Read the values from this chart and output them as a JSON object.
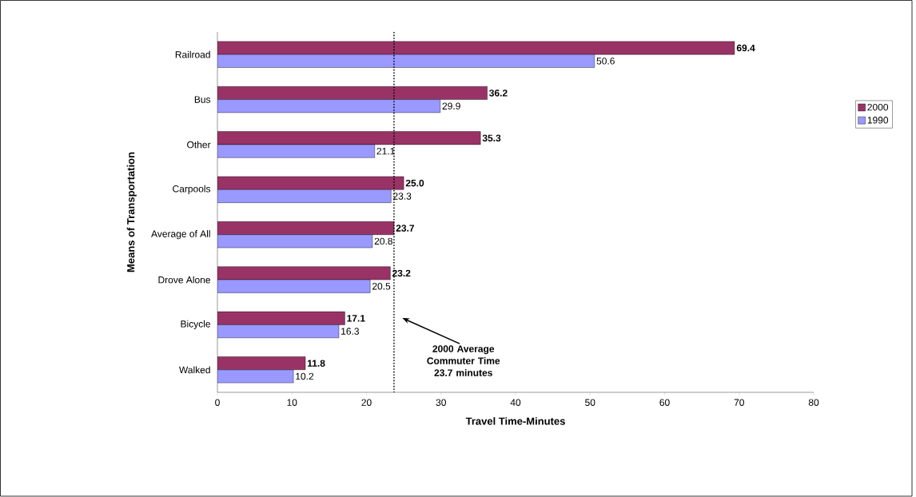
{
  "chart_data": {
    "type": "bar",
    "orientation": "horizontal",
    "xlabel": "Travel Time-Minutes",
    "ylabel": "Means of Transportation",
    "categories": [
      "Railroad",
      "Bus",
      "Other",
      "Carpools",
      "Average of All",
      "Drove Alone",
      "Bicycle",
      "Walked"
    ],
    "series": [
      {
        "name": "2000",
        "color": "#993366",
        "values": [
          69.4,
          36.2,
          35.3,
          25.0,
          23.7,
          23.2,
          17.1,
          11.8
        ],
        "value_labels": [
          "69.4",
          "36.2",
          "35.3",
          "25.0",
          "23.7",
          "23.2",
          "17.1",
          "11.8"
        ]
      },
      {
        "name": "1990",
        "color": "#9999ff",
        "values": [
          50.6,
          29.9,
          21.1,
          23.3,
          20.8,
          20.5,
          16.3,
          10.2
        ],
        "value_labels": [
          "50.6",
          "29.9",
          "21.1",
          "23.3",
          "20.8",
          "20.5",
          "16.3",
          "10.2"
        ]
      }
    ],
    "xlim": [
      0,
      80
    ],
    "xticks": [
      0,
      10,
      20,
      30,
      40,
      50,
      60,
      70,
      80
    ],
    "ref_lines": [
      {
        "axis": "x",
        "value": 23.7,
        "line_style": "dotted",
        "color": "#000000"
      }
    ],
    "annotations": [
      "2000 Average Commuter Time 23.7 minutes"
    ],
    "legend": "right",
    "grid": false
  }
}
